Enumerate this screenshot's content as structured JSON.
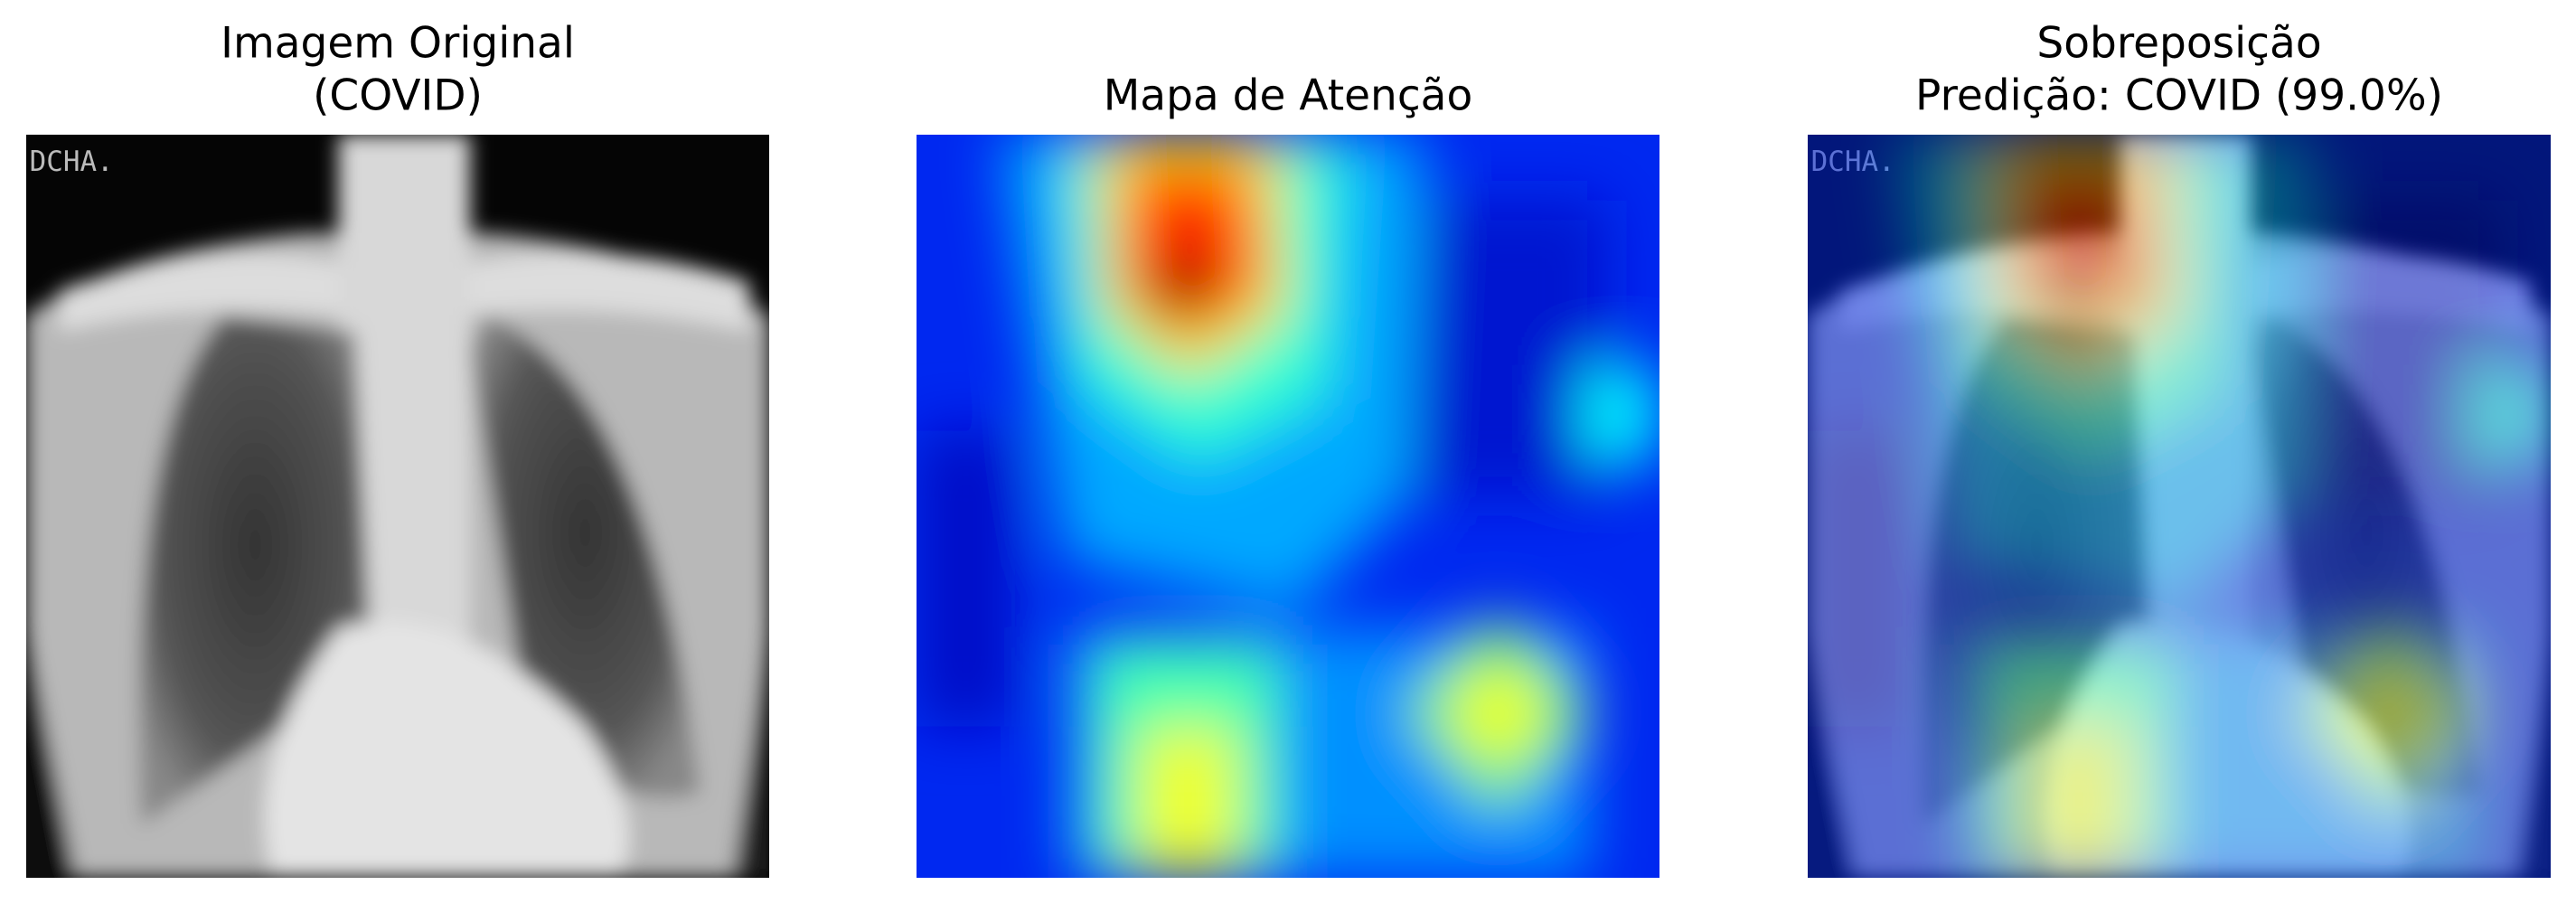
{
  "panels": [
    {
      "title": [
        "Imagem Original",
        "(COVID)"
      ],
      "image_text": "DCHA."
    },
    {
      "title": [
        "Mapa de Atenção"
      ]
    },
    {
      "title": [
        "Sobreposição",
        "Predição: COVID (99.0%)"
      ],
      "image_text": "DCHA."
    }
  ]
}
